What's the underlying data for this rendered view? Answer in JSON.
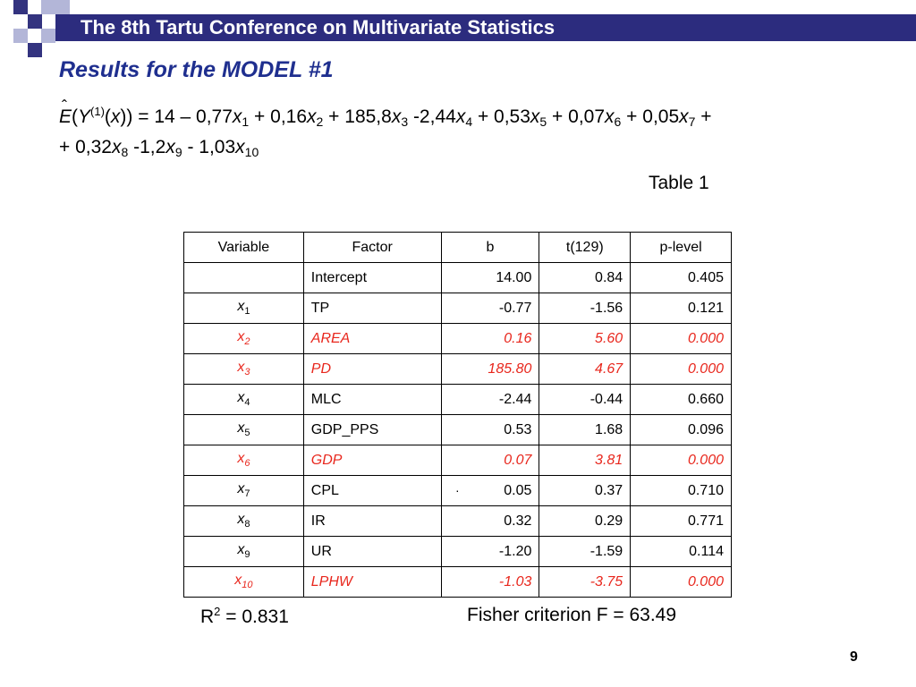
{
  "header": {
    "title": "The 8th Tartu Conference on Multivariate Statistics"
  },
  "slide": {
    "title": "Results for the MODEL #1"
  },
  "equation": {
    "lhs_E": "E",
    "lhs_open": "(",
    "lhs_Y": "Y",
    "lhs_sup": "(1)",
    "lhs_mid": "(",
    "lhs_x": "x",
    "lhs_close": ")) = 14 – 0,77",
    "terms": [
      {
        "var": "x",
        "sub": "1",
        "after": " + 0,16"
      },
      {
        "var": "x",
        "sub": "2",
        "after": " + 185,8"
      },
      {
        "var": "x",
        "sub": "3",
        "after": " -2,44"
      },
      {
        "var": "x",
        "sub": "4",
        "after": " + 0,53"
      },
      {
        "var": "x",
        "sub": "5",
        "after": " + 0,07"
      },
      {
        "var": "x",
        "sub": "6",
        "after": " + 0,05"
      },
      {
        "var": "x",
        "sub": "7",
        "after": " +"
      }
    ],
    "line2_start": "+ 0,32",
    "terms2": [
      {
        "var": "x",
        "sub": "8",
        "after": " -1,2"
      },
      {
        "var": "x",
        "sub": "9",
        "after": " - 1,03"
      },
      {
        "var": "x",
        "sub": "10",
        "after": ""
      }
    ]
  },
  "table_label": "Table 1",
  "table": {
    "headers": [
      "Variable",
      "Factor",
      "b",
      "t(129)",
      "p-level"
    ],
    "rows": [
      {
        "var": "",
        "sub": "",
        "factor": "Intercept",
        "b": "14.00",
        "t": "0.84",
        "p": "0.405"
      },
      {
        "var": "x",
        "sub": "1",
        "factor": "TP",
        "b": "-0.77",
        "t": "-1.56",
        "p": "0.121"
      },
      {
        "var": "x",
        "sub": "2",
        "factor": "AREA",
        "b": "0.16",
        "t": "5.60",
        "p": "0.000"
      },
      {
        "var": "x",
        "sub": "3",
        "factor": "PD",
        "b": "185.80",
        "t": "4.67",
        "p": "0.000"
      },
      {
        "var": "x",
        "sub": "4",
        "factor": "MLC",
        "b": "-2.44",
        "t": "-0.44",
        "p": "0.660"
      },
      {
        "var": "x",
        "sub": "5",
        "factor": "GDP_PPS",
        "b": "0.53",
        "t": "1.68",
        "p": "0.096"
      },
      {
        "var": "x",
        "sub": "6",
        "factor": "GDP",
        "b": "0.07",
        "t": "3.81",
        "p": "0.000"
      },
      {
        "var": "x",
        "sub": "7",
        "factor": "CPL",
        "b": "0.05",
        "t": "0.37",
        "p": "0.710"
      },
      {
        "var": "x",
        "sub": "8",
        "factor": "IR",
        "b": "0.32",
        "t": "0.29",
        "p": "0.771"
      },
      {
        "var": "x",
        "sub": "9",
        "factor": "UR",
        "b": "-1.20",
        "t": "-1.59",
        "p": "0.114"
      },
      {
        "var": "x",
        "sub": "10",
        "factor": "LPHW",
        "b": "-1.03",
        "t": "-3.75",
        "p": "0.000"
      }
    ]
  },
  "stray_mark": "·",
  "footer": {
    "r2_base": "R",
    "r2_sup": "2",
    "r2_rest": " = 0.831",
    "fisher": "Fisher criterion F = 63.49"
  },
  "page_number": "9",
  "colors": {
    "header_bg": "#2c2c7e",
    "title": "#1f2f8f",
    "significant": "#e8271d"
  }
}
